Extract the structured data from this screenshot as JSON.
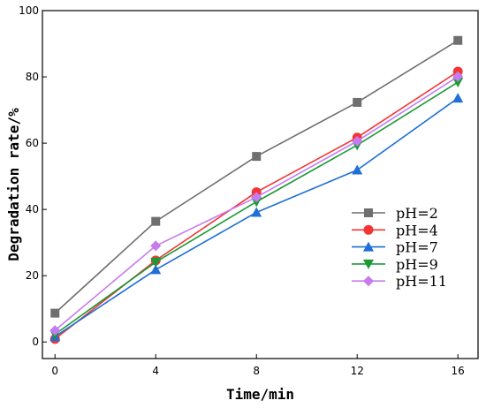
{
  "chart_data": {
    "type": "line",
    "title": "",
    "xlabel": "Time/min",
    "ylabel": "Degradation rate/%",
    "x": [
      0,
      4,
      8,
      12,
      16
    ],
    "xlim": [
      -0.5,
      16.8
    ],
    "ylim": [
      -5,
      100
    ],
    "xticks": [
      0,
      4,
      8,
      12,
      16
    ],
    "yticks": [
      0,
      20,
      40,
      60,
      80,
      100
    ],
    "grid": false,
    "legend": "center-right",
    "series": [
      {
        "name": "pH=2",
        "values": [
          8.7,
          36.4,
          56.0,
          72.3,
          91.0
        ],
        "color": "#6f6f6f",
        "marker": "square"
      },
      {
        "name": "pH=4",
        "values": [
          0.9,
          24.6,
          45.2,
          61.7,
          81.6
        ],
        "color": "#f23535",
        "marker": "circle"
      },
      {
        "name": "pH=7",
        "values": [
          1.6,
          21.8,
          39.1,
          51.9,
          73.6
        ],
        "color": "#1f6fd6",
        "marker": "triangle-up"
      },
      {
        "name": "pH=9",
        "values": [
          2.3,
          24.1,
          42.3,
          59.4,
          78.4
        ],
        "color": "#1a9a35",
        "marker": "triangle-down"
      },
      {
        "name": "pH=11",
        "values": [
          3.5,
          29.0,
          43.7,
          60.6,
          80.1
        ],
        "color": "#c77bf0",
        "marker": "diamond"
      }
    ]
  }
}
